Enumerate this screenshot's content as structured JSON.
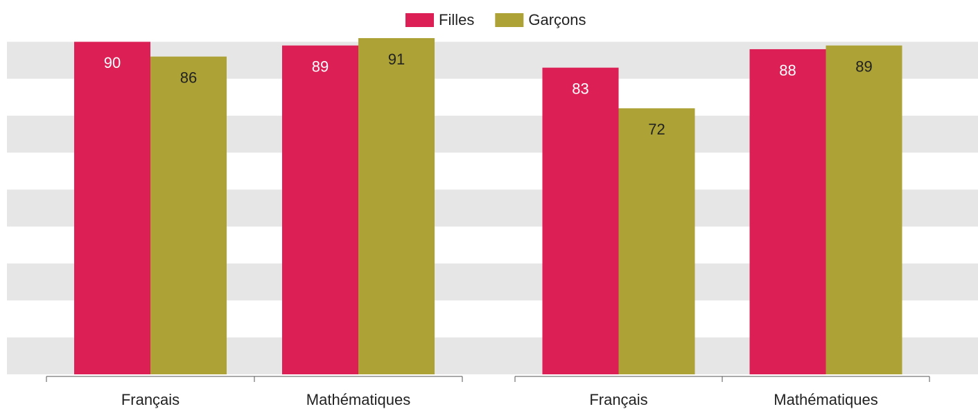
{
  "chart_data": [
    {
      "type": "bar",
      "categories": [
        "Français",
        "Mathématiques"
      ],
      "series": [
        {
          "name": "Filles",
          "color": "#dc1f55",
          "values": [
            90,
            89
          ]
        },
        {
          "name": "Garçons",
          "color": "#aca235",
          "values": [
            86,
            91
          ]
        }
      ],
      "ylim": [
        0,
        100
      ],
      "yticks": [
        0,
        10,
        20,
        30,
        40,
        50,
        60,
        70,
        80,
        90,
        100
      ],
      "grid": "bands"
    },
    {
      "type": "bar",
      "categories": [
        "Français",
        "Mathématiques"
      ],
      "series": [
        {
          "name": "Filles",
          "color": "#dc1f55",
          "values": [
            83,
            88
          ]
        },
        {
          "name": "Garçons",
          "color": "#aca235",
          "values": [
            72,
            89
          ]
        }
      ],
      "ylim": [
        0,
        100
      ],
      "yticks": [
        0,
        10,
        20,
        30,
        40,
        50,
        60,
        70,
        80,
        90,
        100
      ],
      "grid": "bands"
    }
  ]
}
